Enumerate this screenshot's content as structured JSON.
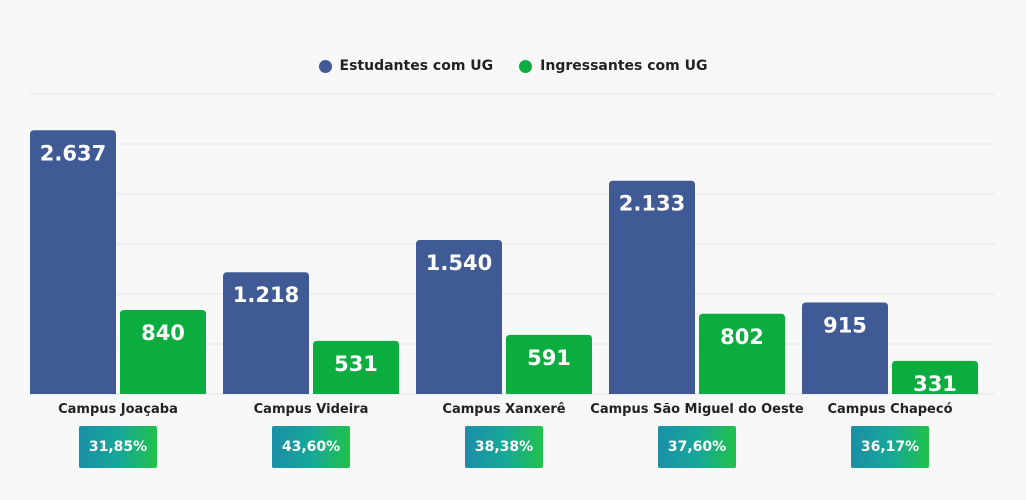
{
  "chart_data": {
    "type": "bar",
    "categories": [
      "Campus Joaçaba",
      "Campus Videira",
      "Campus Xanxerê",
      "Campus São Miguel do Oeste",
      "Campus Chapecó"
    ],
    "series": [
      {
        "name": "Estudantes com UG",
        "color": "#3f5a94",
        "values": [
          2637,
          1218,
          1540,
          2133,
          915
        ],
        "labels": [
          "2.637",
          "1.218",
          "1.540",
          "2.133",
          "915"
        ]
      },
      {
        "name": "Ingressantes com UG",
        "color": "#0bae3e",
        "values": [
          840,
          531,
          591,
          802,
          331
        ],
        "labels": [
          "840",
          "531",
          "591",
          "802",
          "331"
        ]
      }
    ],
    "percentages": [
      "31,85%",
      "43,60%",
      "38,38%",
      "37,60%",
      "36,17%"
    ],
    "ylim": [
      0,
      3000
    ],
    "grid": true,
    "legend_position": "top-center",
    "title": "",
    "xlabel": "",
    "ylabel": ""
  }
}
